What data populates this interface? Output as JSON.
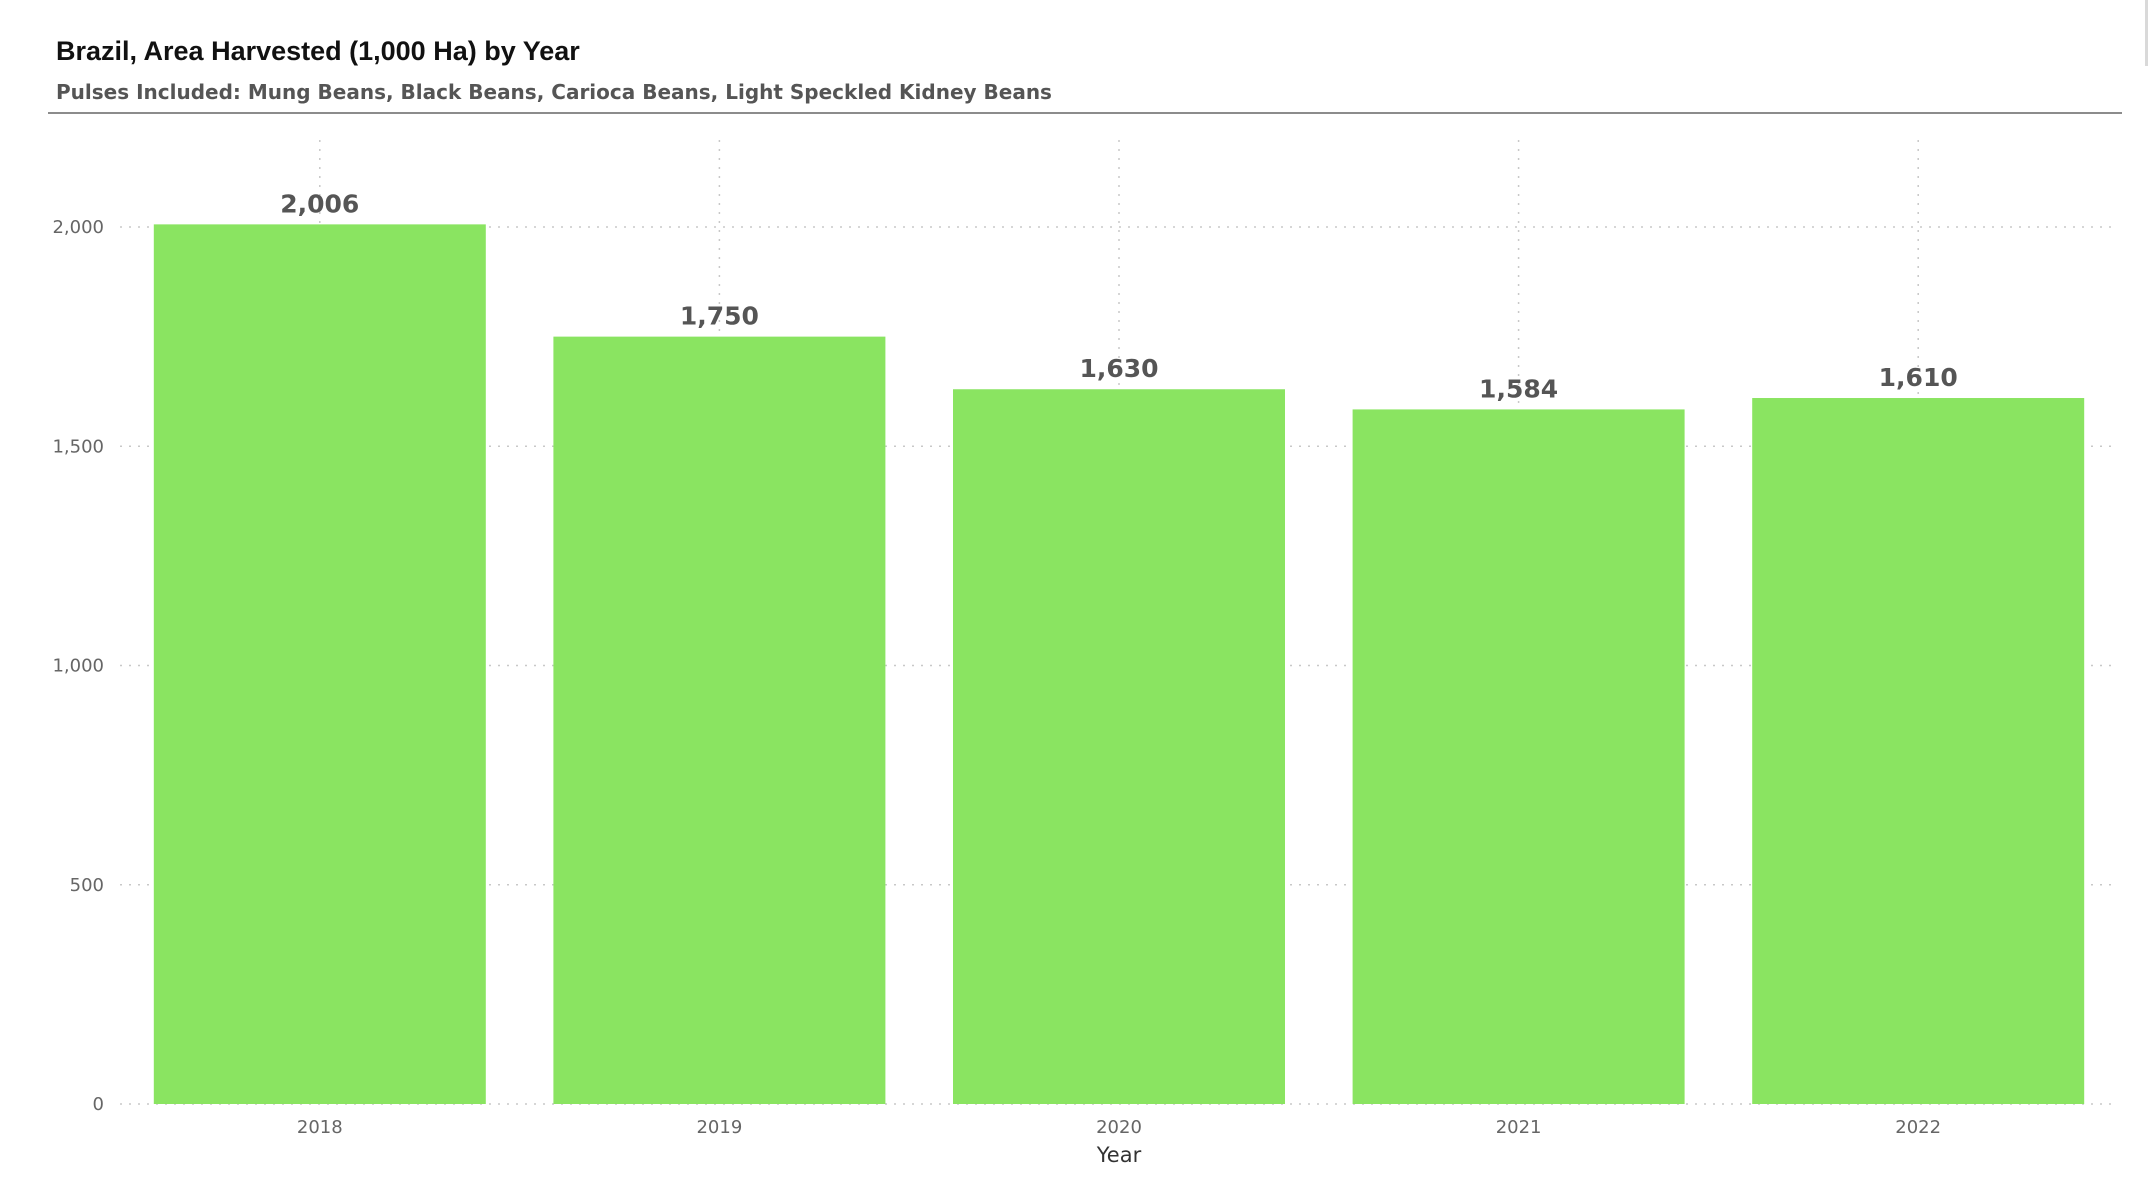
{
  "chart_data": {
    "type": "bar",
    "title": "Brazil, Area Harvested (1,000 Ha) by Year",
    "subtitle": "Pulses Included: Mung Beans, Black Beans, Carioca Beans, Light Speckled Kidney Beans",
    "xlabel": "Year",
    "ylabel": "",
    "categories": [
      "2018",
      "2019",
      "2020",
      "2021",
      "2022"
    ],
    "values": [
      2006,
      1750,
      1630,
      1584,
      1610
    ],
    "data_labels": [
      "2,006",
      "1,750",
      "1,630",
      "1,584",
      "1,610"
    ],
    "ylim": [
      0,
      2000
    ],
    "yticks": [
      0,
      500,
      1000,
      1500,
      2000
    ],
    "ytick_labels": [
      "0",
      "500",
      "1,000",
      "1,500",
      "2,000"
    ],
    "grid": true,
    "legend": "none",
    "bar_color": "#8AE461"
  }
}
